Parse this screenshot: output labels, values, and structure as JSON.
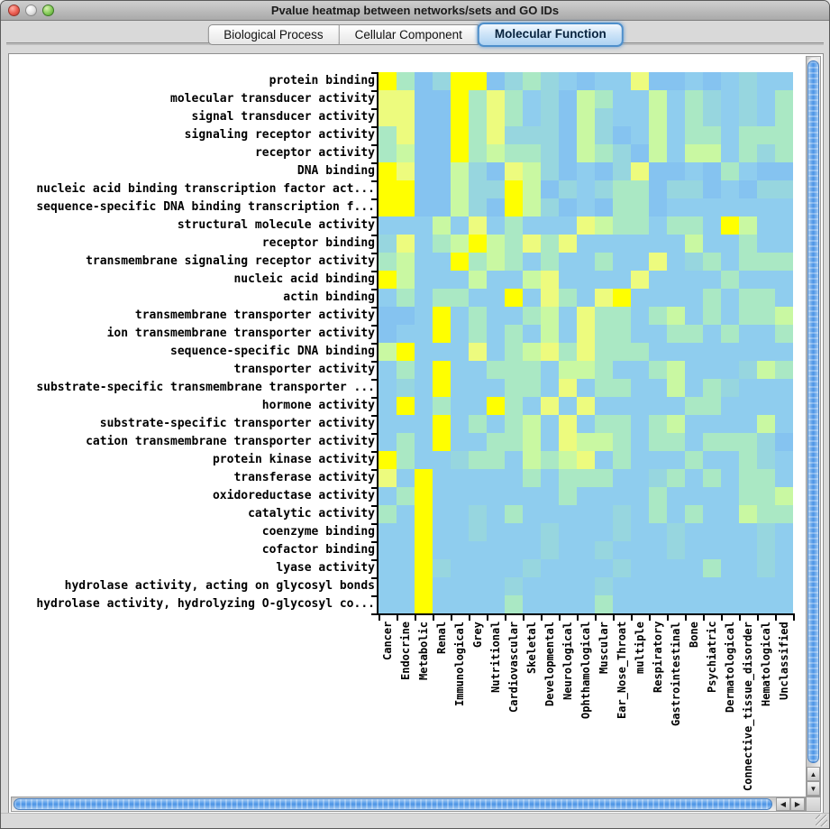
{
  "window": {
    "title": "Pvalue heatmap between networks/sets and GO IDs"
  },
  "tabs": [
    {
      "label": "Biological Process",
      "selected": false
    },
    {
      "label": "Cellular Component",
      "selected": false
    },
    {
      "label": "Molecular Function",
      "selected": true
    }
  ],
  "icons": {
    "scroll_up": "▲",
    "scroll_down": "▼",
    "scroll_left": "◀",
    "scroll_right": "▶"
  },
  "chart_data": {
    "type": "heatmap",
    "title": "Pvalue heatmap between networks/sets and GO IDs",
    "rows": [
      "protein binding",
      "molecular transducer activity",
      "signal transducer activity",
      "signaling receptor activity",
      "receptor activity",
      "DNA binding",
      "nucleic acid binding transcription factor act...",
      "sequence-specific DNA binding transcription f...",
      "structural molecule activity",
      "receptor binding",
      "transmembrane signaling receptor activity",
      "nucleic acid binding",
      "actin binding",
      "transmembrane transporter activity",
      "ion transmembrane transporter activity",
      "sequence-specific DNA binding",
      "transporter activity",
      "substrate-specific transmembrane transporter ...",
      "hormone activity",
      "substrate-specific transporter activity",
      "cation transmembrane transporter activity",
      "protein kinase activity",
      "transferase activity",
      "oxidoreductase activity",
      "catalytic activity",
      "coenzyme binding",
      "cofactor binding",
      "lyase activity",
      "hydrolase activity, acting on glycosyl bonds",
      "hydrolase activity, hydrolyzing O-glycosyl co..."
    ],
    "columns": [
      "Cancer",
      "Endocrine",
      "Metabolic",
      "Renal",
      "Immunological",
      "Grey",
      "Nutritional",
      "Cardiovascular",
      "Skeletal",
      "Developmental",
      "Neurological",
      "Ophthamological",
      "Muscular",
      "Ear_Nose_Throat",
      "multiple",
      "Respiratory",
      "Gastrointestinal",
      "Bone",
      "Psychiatric",
      "Dermatological",
      "Connective_tissue_disorder",
      "Hematological",
      "Unclassified"
    ],
    "palette": {
      "Y": "#ffff00",
      "y": "#edfb7e",
      "g": "#c9f8a2",
      "m": "#aae8c4",
      "c": "#97d6df",
      "b": "#8fcdee",
      "B": "#85c3f0"
    },
    "grid": [
      "YmBcYYBcmcbBbbyBBbBbcbb",
      "yyBBYmymbcBgmbbgbmcbcbm",
      "yyBBYmymbcBgcbbgbmcbcbm",
      "myBBYmycccBgcBbgbmmbmmm",
      "mgBBYmgmmcBgmcBgbggbmcm",
      "YyBBgcBygcBbBcyBBbBmbBB",
      "YYBBgccYgBcbcmmBccBbBcc",
      "YYBBgcBYgcBbBmmBbbbbbbb",
      "bbbgbybmbbbygmmbmmbYgbb",
      "cybmgYgmymybbbbbbgbbmbb",
      "mgbbYmgmbmbbmbbybcmbmmm",
      "Ygbbbgbbgybbbbybbbbmbbb",
      "bmbmmbbYbymbyYbbbbmbmmb",
      "BBbYbmbbmgbymmbmgbmbmmg",
      "BbbYbmbmbgbymmbbmmbmbbm",
      "gYbbbybmgymymmmbbbbbbbb",
      "bmbYbbmmmbggmbbmgbbbcgm",
      "bcbYbbbmmbybmmbbgbmcbbb",
      "bYbmbbYmbybybbbbbmmbbbb",
      "bbbYbmbmgbybmmbmgbbbbgb",
      "bmbYbbmmgbyggmbmmbmmmcB",
      "Ymbbcmmbgmgybmbbbmbbmcb",
      "ybYbbbbbmbmmmbbcmbmbmmb",
      "bmYbbbbbbbmbbbbmbbbbmmg",
      "mbYbbcbmbbbbbcbmbmbbgmm",
      "bbYbbcbbbcbbbcbbcbbbbcb",
      "bbYbbbbbbcbbcbbbcbbbbcb",
      "bbYcbbbbcbbbbcbbbbmbbcb",
      "bbYbbbbcbbbbcbbbbbbbbbb",
      "bbYbbbbmbbbbmbbbbbbbbbb"
    ]
  }
}
